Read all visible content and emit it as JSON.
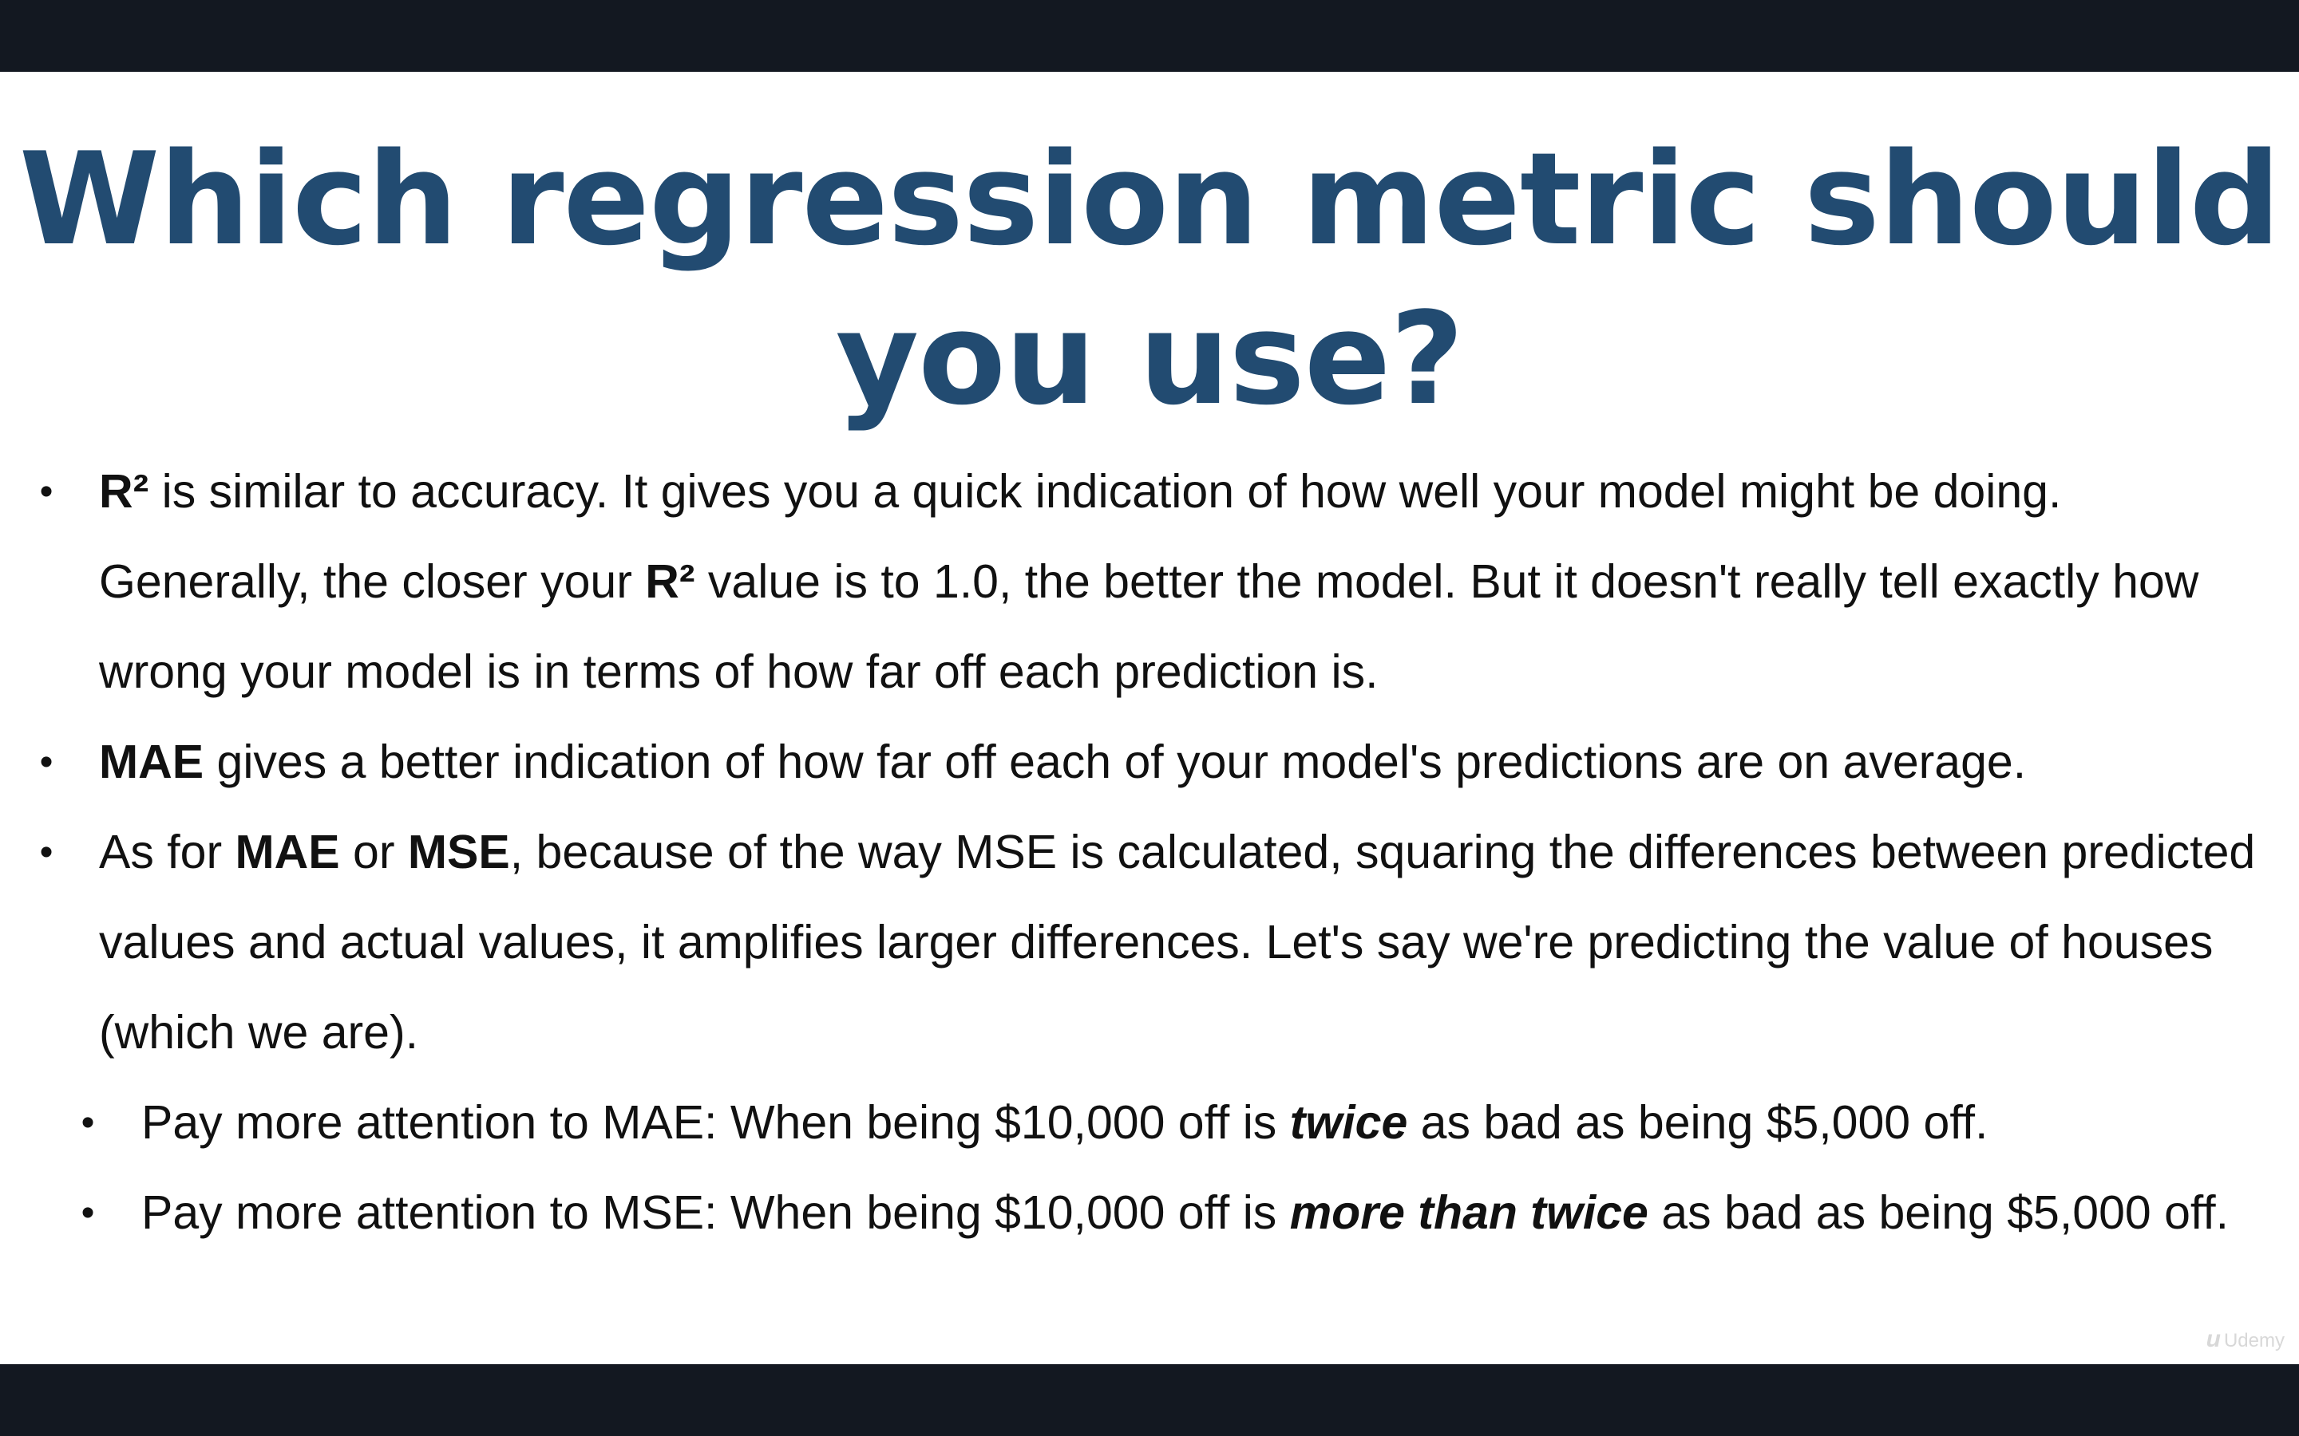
{
  "slide": {
    "title": "Which regression metric should you use?",
    "bullets": [
      {
        "parts": [
          {
            "text": "R²",
            "style": "bold"
          },
          {
            "text": " is similar to accuracy. It gives you a quick indication of how well your model might be doing. Generally, the closer your ",
            "style": "normal"
          },
          {
            "text": "R²",
            "style": "bold"
          },
          {
            "text": " value is to 1.0, the better the model. But it doesn't really tell exactly how wrong your model is in terms of how far off each prediction is.",
            "style": "normal"
          }
        ]
      },
      {
        "parts": [
          {
            "text": "MAE",
            "style": "bold"
          },
          {
            "text": " gives a better indication of how far off each of your model's predictions are on average.",
            "style": "normal"
          }
        ]
      },
      {
        "parts": [
          {
            "text": "As for ",
            "style": "normal"
          },
          {
            "text": "MAE",
            "style": "bold"
          },
          {
            "text": " or ",
            "style": "normal"
          },
          {
            "text": "MSE",
            "style": "bold"
          },
          {
            "text": ", because of the way MSE is calculated, squaring the differences between predicted values and actual values, it amplifies larger differences. Let's say we're predicting the value of houses (which we are).",
            "style": "normal"
          }
        ],
        "sub_bullets": [
          {
            "parts": [
              {
                "text": "Pay more attention to MAE: When being $10,000 off is ",
                "style": "normal"
              },
              {
                "text": "twice",
                "style": "bold-italic"
              },
              {
                "text": " as bad as being $5,000 off.",
                "style": "normal"
              }
            ]
          },
          {
            "parts": [
              {
                "text": "Pay more attention to MSE: When being $10,000 off is ",
                "style": "normal"
              },
              {
                "text": "more than twice",
                "style": "bold-italic"
              },
              {
                "text": " as bad as being $5,000 off.",
                "style": "normal"
              }
            ]
          }
        ]
      }
    ]
  },
  "watermark": {
    "text": "Udemy",
    "icon": "udemy-logo-icon"
  },
  "colors": {
    "title": "#224b71",
    "body_text": "#111111",
    "slide_background": "#ffffff",
    "frame_background": "#131821"
  }
}
